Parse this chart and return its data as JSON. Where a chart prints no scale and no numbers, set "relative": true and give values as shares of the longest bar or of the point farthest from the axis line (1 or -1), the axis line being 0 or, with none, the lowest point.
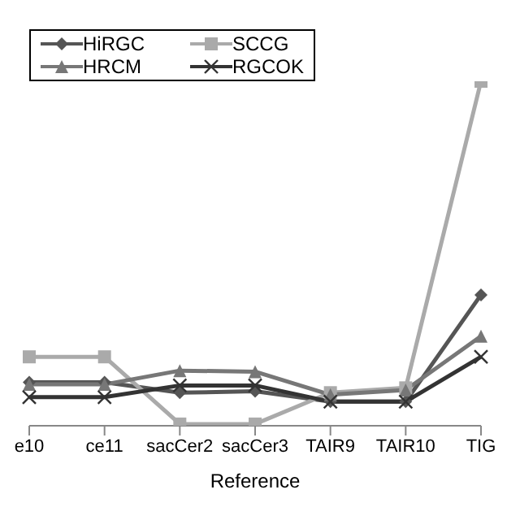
{
  "chart_data": {
    "type": "line",
    "relative": true,
    "xlabel": "Reference",
    "categories": [
      "e10",
      "ce11",
      "sacCer2",
      "sacCer3",
      "TAIR9",
      "TAIR10",
      "TIG"
    ],
    "legend": "top left",
    "grid": false,
    "series": [
      {
        "name": "HiRGC",
        "color": "#555555",
        "marker": "diamond",
        "values": [
          0.126,
          0.126,
          0.096,
          0.1,
          0.07,
          0.07,
          0.38
        ]
      },
      {
        "name": "SCCG",
        "color": "#aaaaaa",
        "marker": "square",
        "values": [
          0.2,
          0.2,
          0.005,
          0.005,
          0.096,
          0.11,
          1
        ]
      },
      {
        "name": "HRCM",
        "color": "#777777",
        "marker": "triangle",
        "values": [
          0.12,
          0.12,
          0.16,
          0.157,
          0.09,
          0.104,
          0.26
        ]
      },
      {
        "name": "RGCOK",
        "color": "#333333",
        "marker": "cross",
        "values": [
          0.083,
          0.083,
          0.117,
          0.117,
          0.07,
          0.07,
          0.2
        ]
      }
    ]
  }
}
